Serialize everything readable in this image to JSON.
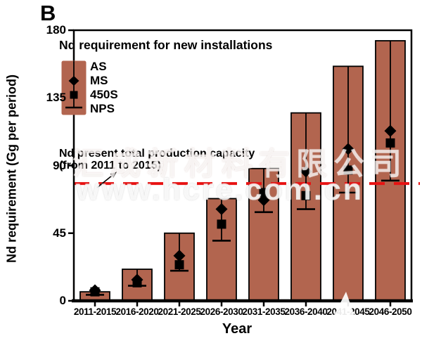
{
  "panel_label": "B",
  "colors": {
    "bar_fill": "#b2654f",
    "bar_border": "#000000",
    "reference_line": "#e81212",
    "axis": "#000000",
    "background": "#ffffff"
  },
  "watermark": {
    "company_cn": "汇成新材料有限公司",
    "url": "www.hcre.com.cn"
  },
  "chart_data": {
    "type": "bar",
    "legend_title": "Nd requirement for new installations",
    "legend_entries": [
      "AS",
      "MS",
      "450S",
      "NPS"
    ],
    "xlabel": "Year",
    "ylabel": "Nd requirement (Gg per period)",
    "ylim": [
      0,
      180
    ],
    "yticks": [
      "0",
      "45",
      "90",
      "135",
      "180"
    ],
    "categories": [
      "2011-2015",
      "2016-2020",
      "2021-2025",
      "2026-2030",
      "2031-2035",
      "2036-2040",
      "2041-2045",
      "2046-2050"
    ],
    "series": [
      {
        "name": "AS",
        "marker": "bar",
        "values": [
          6,
          21,
          45,
          68,
          88,
          125,
          156,
          173
        ]
      },
      {
        "name": "MS",
        "marker": "diamond",
        "values": [
          7,
          14,
          30,
          61,
          67,
          86,
          101,
          113
        ]
      },
      {
        "name": "450S",
        "marker": "square",
        "values": [
          6,
          12,
          24,
          51,
          72,
          70,
          87,
          105
        ]
      },
      {
        "name": "NPS",
        "marker": "cap",
        "values": [
          4,
          10,
          20,
          40,
          59,
          61,
          72,
          80
        ]
      }
    ],
    "reference_line": {
      "value": 78,
      "style": "dashed",
      "label_line1": "Nd present total production capacity",
      "label_line2": "(from 2011 to 2015)"
    },
    "grid": false,
    "legend_position": "upper-left-inside"
  }
}
